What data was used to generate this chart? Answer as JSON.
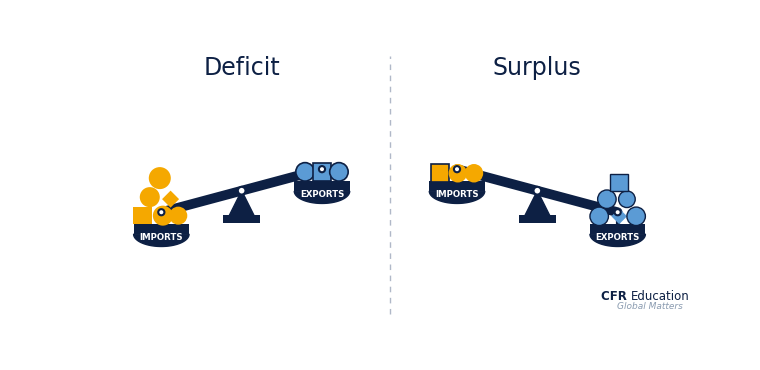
{
  "bg_color": "#ffffff",
  "navy": "#0d2044",
  "gold": "#f5a800",
  "blue": "#5b9bd5",
  "title_deficit": "Deficit",
  "title_surplus": "Surplus",
  "label_imports": "IMPORTS",
  "label_exports": "EXPORTS",
  "cfr_bold": "CFR ",
  "cfr_reg": "Education",
  "cfr_sub": "Global Matters",
  "divider_color": "#b0b8c8",
  "title_fontsize": 17,
  "cfr_fontsize": 8.5
}
